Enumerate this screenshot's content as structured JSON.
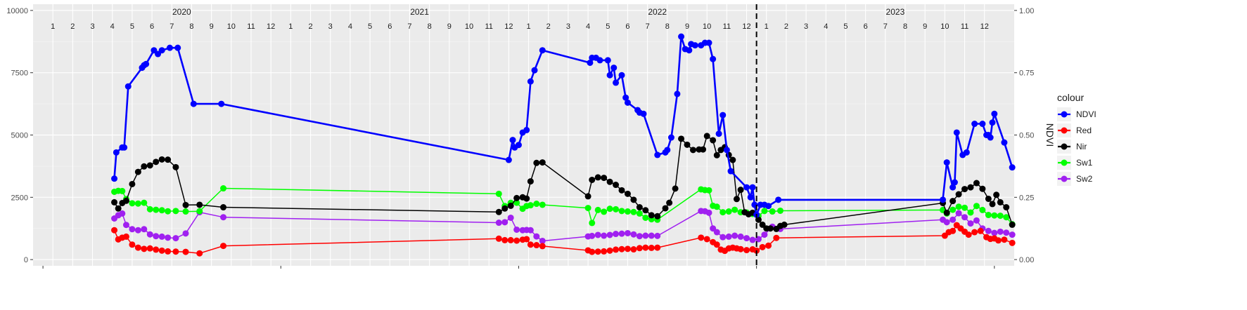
{
  "chart_data": {
    "type": "line",
    "title": "",
    "xlabel": "",
    "ylabel": "",
    "y2label": "NDVI",
    "ylim": [
      0,
      10000
    ],
    "y2lim": [
      0,
      1
    ],
    "yticks": [
      0,
      2500,
      5000,
      7500,
      10000
    ],
    "y2ticks": [
      "0.00",
      "0.25",
      "0.50",
      "0.75",
      "1.00"
    ],
    "years": [
      "2020",
      "2021",
      "2022",
      "2023"
    ],
    "months": [
      "1",
      "2",
      "3",
      "4",
      "5",
      "6",
      "7",
      "8",
      "9",
      "10",
      "11",
      "12"
    ],
    "xlim": [
      1.0,
      49.0
    ],
    "vline_x": 37.0,
    "grid": true,
    "legend": {
      "title": "colour",
      "position": "right",
      "entries": [
        "NDVI",
        "Red",
        "Nir",
        "Sw1",
        "Sw2"
      ]
    },
    "colors": {
      "NDVI": "#0000ff",
      "Red": "#ff0000",
      "Nir": "#000000",
      "Sw1": "#00ff00",
      "Sw2": "#a020f0"
    },
    "series": [
      {
        "name": "NDVI",
        "x": [
          4.6,
          4.7,
          5.0,
          5.1,
          5.3,
          6.0,
          6.1,
          6.2,
          6.6,
          6.8,
          7.0,
          7.4,
          7.8,
          8.6,
          10.0,
          24.5,
          24.7,
          24.8,
          25.0,
          25.2,
          25.4,
          25.6,
          25.8,
          26.2,
          28.6,
          28.7,
          28.9,
          29.1,
          29.5,
          29.6,
          29.8,
          29.9,
          30.2,
          30.4,
          30.5,
          31.0,
          31.1,
          31.3,
          32.0,
          32.4,
          32.5,
          32.7,
          33.0,
          33.2,
          33.4,
          33.6,
          33.7,
          33.9,
          34.2,
          34.4,
          34.6,
          34.8,
          35.1,
          35.3,
          35.5,
          35.7,
          36.5,
          36.7,
          36.8,
          36.9,
          37.0,
          37.2,
          37.4,
          37.6,
          38.1,
          46.4,
          46.6,
          46.9,
          47.0,
          47.1,
          47.4,
          47.6,
          48.0,
          48.4,
          48.6,
          48.7,
          48.8,
          48.9,
          49.0,
          49.5,
          49.9
        ],
        "y": [
          0.325,
          0.43,
          0.45,
          0.45,
          0.695,
          0.77,
          0.78,
          0.785,
          0.84,
          0.825,
          0.84,
          0.85,
          0.85,
          0.625,
          0.625,
          0.4,
          0.48,
          0.45,
          0.46,
          0.51,
          0.52,
          0.715,
          0.76,
          0.84,
          0.79,
          0.81,
          0.81,
          0.8,
          0.8,
          0.74,
          0.77,
          0.71,
          0.74,
          0.65,
          0.63,
          0.6,
          0.59,
          0.585,
          0.42,
          0.43,
          0.44,
          0.49,
          0.665,
          0.895,
          0.845,
          0.84,
          0.865,
          0.86,
          0.86,
          0.87,
          0.87,
          0.805,
          0.505,
          0.58,
          0.44,
          0.355,
          0.29,
          0.25,
          0.29,
          0.22,
          0.18,
          0.22,
          0.22,
          0.215,
          0.24,
          0.24,
          0.39,
          0.29,
          0.31,
          0.51,
          0.42,
          0.43,
          0.545,
          0.545,
          0.5,
          0.5,
          0.49,
          0.55,
          0.585,
          0.47,
          0.37
        ],
        "axis": "y2"
      },
      {
        "name": "Red",
        "x": [
          4.6,
          4.8,
          5.0,
          5.2,
          5.5,
          5.8,
          6.1,
          6.4,
          6.7,
          7.0,
          7.3,
          7.7,
          8.2,
          8.9,
          10.1,
          24.0,
          24.3,
          24.6,
          24.9,
          25.2,
          25.4,
          25.6,
          25.9,
          26.2,
          28.5,
          28.7,
          29.0,
          29.3,
          29.6,
          29.9,
          30.2,
          30.5,
          30.8,
          31.1,
          31.4,
          31.7,
          32.0,
          34.2,
          34.5,
          34.8,
          35.0,
          35.2,
          35.4,
          35.6,
          35.8,
          36.0,
          36.2,
          36.5,
          36.8,
          37.0,
          37.3,
          37.6,
          38.0,
          46.5,
          46.7,
          46.9,
          47.1,
          47.3,
          47.5,
          47.7,
          48.0,
          48.3,
          48.6,
          48.8,
          49.0,
          49.2,
          49.5,
          49.9
        ],
        "y": [
          1180,
          810,
          880,
          920,
          600,
          480,
          430,
          450,
          400,
          360,
          330,
          320,
          310,
          250,
          550,
          840,
          780,
          780,
          760,
          800,
          820,
          600,
          580,
          540,
          370,
          310,
          320,
          330,
          360,
          400,
          420,
          430,
          410,
          460,
          480,
          470,
          480,
          880,
          820,
          700,
          600,
          400,
          350,
          450,
          480,
          450,
          420,
          380,
          410,
          360,
          500,
          560,
          870,
          960,
          1100,
          1150,
          1380,
          1250,
          1120,
          1000,
          1100,
          1150,
          900,
          830,
          850,
          770,
          800,
          670
        ],
        "axis": "y1"
      },
      {
        "name": "Nir",
        "x": [
          4.6,
          4.8,
          5.0,
          5.2,
          5.5,
          5.8,
          6.1,
          6.4,
          6.7,
          7.0,
          7.3,
          7.7,
          8.2,
          8.9,
          10.1,
          24.0,
          24.3,
          24.6,
          24.9,
          25.2,
          25.4,
          25.6,
          25.9,
          26.2,
          28.5,
          28.7,
          29.0,
          29.3,
          29.6,
          29.9,
          30.2,
          30.5,
          30.8,
          31.1,
          31.4,
          31.7,
          32.0,
          32.4,
          32.6,
          32.9,
          33.2,
          33.5,
          33.8,
          34.1,
          34.3,
          34.5,
          34.8,
          35.0,
          35.2,
          35.4,
          35.6,
          35.8,
          36.0,
          36.2,
          36.4,
          36.6,
          36.8,
          37.1,
          37.3,
          37.5,
          37.7,
          38.0,
          38.2,
          38.4,
          46.4,
          46.6,
          46.9,
          47.2,
          47.5,
          47.8,
          48.1,
          48.4,
          48.7,
          48.9,
          49.1,
          49.3,
          49.6,
          49.9
        ],
        "y": [
          2300,
          2050,
          2270,
          2360,
          3030,
          3520,
          3740,
          3780,
          3920,
          4020,
          4010,
          3710,
          2190,
          2200,
          2100,
          1910,
          2050,
          2160,
          2470,
          2500,
          2450,
          3140,
          3880,
          3900,
          2540,
          3200,
          3300,
          3280,
          3120,
          3000,
          2780,
          2640,
          2400,
          2100,
          1980,
          1780,
          1740,
          2060,
          2280,
          2850,
          4850,
          4610,
          4400,
          4420,
          4420,
          4960,
          4790,
          4190,
          4400,
          4510,
          4200,
          4000,
          2430,
          2800,
          1900,
          1820,
          1880,
          1600,
          1400,
          1250,
          1250,
          1230,
          1350,
          1400,
          2270,
          1880,
          2350,
          2620,
          2830,
          2900,
          3070,
          2840,
          2440,
          2230,
          2600,
          2300,
          2100,
          1400
        ],
        "axis": "y1"
      },
      {
        "name": "Sw1",
        "x": [
          4.6,
          4.8,
          5.0,
          5.2,
          5.5,
          5.8,
          6.1,
          6.4,
          6.7,
          7.0,
          7.3,
          7.7,
          8.2,
          8.9,
          10.1,
          24.0,
          24.3,
          24.6,
          24.9,
          25.2,
          25.4,
          25.6,
          25.9,
          26.2,
          28.5,
          28.7,
          29.0,
          29.3,
          29.6,
          29.9,
          30.2,
          30.5,
          30.8,
          31.1,
          31.4,
          31.7,
          32.0,
          34.2,
          34.4,
          34.6,
          34.8,
          35.0,
          35.3,
          35.6,
          35.9,
          36.2,
          36.5,
          36.8,
          37.1,
          37.4,
          37.8,
          38.2,
          46.4,
          46.6,
          46.9,
          47.2,
          47.5,
          47.8,
          48.1,
          48.4,
          48.7,
          49.0,
          49.3,
          49.6,
          49.9
        ],
        "y": [
          2720,
          2760,
          2750,
          2430,
          2260,
          2250,
          2280,
          2020,
          2000,
          1980,
          1940,
          1950,
          1930,
          1940,
          2860,
          2640,
          2150,
          2280,
          2280,
          2040,
          2150,
          2180,
          2240,
          2200,
          2070,
          1470,
          1990,
          1920,
          2040,
          2020,
          1950,
          1930,
          1910,
          1850,
          1680,
          1620,
          1600,
          2820,
          2790,
          2780,
          2160,
          2120,
          1900,
          1930,
          2000,
          1900,
          1890,
          1830,
          1750,
          1950,
          1930,
          1960,
          1990,
          1850,
          2000,
          2120,
          2080,
          1890,
          2150,
          1990,
          1790,
          1770,
          1760,
          1700,
          1420
        ],
        "axis": "y1"
      },
      {
        "name": "Sw2",
        "x": [
          4.6,
          4.8,
          5.0,
          5.2,
          5.5,
          5.8,
          6.1,
          6.4,
          6.7,
          7.0,
          7.3,
          7.7,
          8.2,
          8.9,
          10.1,
          24.0,
          24.3,
          24.6,
          24.9,
          25.2,
          25.4,
          25.6,
          25.9,
          26.2,
          28.5,
          28.7,
          29.0,
          29.3,
          29.6,
          29.9,
          30.2,
          30.5,
          30.8,
          31.1,
          31.4,
          31.7,
          32.0,
          34.2,
          34.4,
          34.6,
          34.8,
          35.0,
          35.3,
          35.6,
          35.9,
          36.2,
          36.5,
          36.8,
          37.1,
          37.4,
          37.8,
          38.2,
          46.4,
          46.6,
          46.9,
          47.2,
          47.5,
          47.8,
          48.1,
          48.4,
          48.7,
          49.0,
          49.3,
          49.6,
          49.9
        ],
        "y": [
          1650,
          1780,
          1850,
          1390,
          1220,
          1180,
          1220,
          1010,
          940,
          920,
          880,
          860,
          1050,
          1900,
          1700,
          1480,
          1500,
          1680,
          1200,
          1180,
          1190,
          1180,
          930,
          750,
          930,
          950,
          990,
          960,
          990,
          1030,
          1040,
          1060,
          1010,
          940,
          960,
          960,
          950,
          1950,
          1940,
          1880,
          1250,
          1100,
          900,
          920,
          960,
          920,
          860,
          790,
          820,
          1000,
          1320,
          1230,
          1600,
          1500,
          1600,
          1860,
          1700,
          1450,
          1570,
          1250,
          1150,
          1070,
          1120,
          1080,
          1000
        ],
        "axis": "y1"
      }
    ]
  }
}
